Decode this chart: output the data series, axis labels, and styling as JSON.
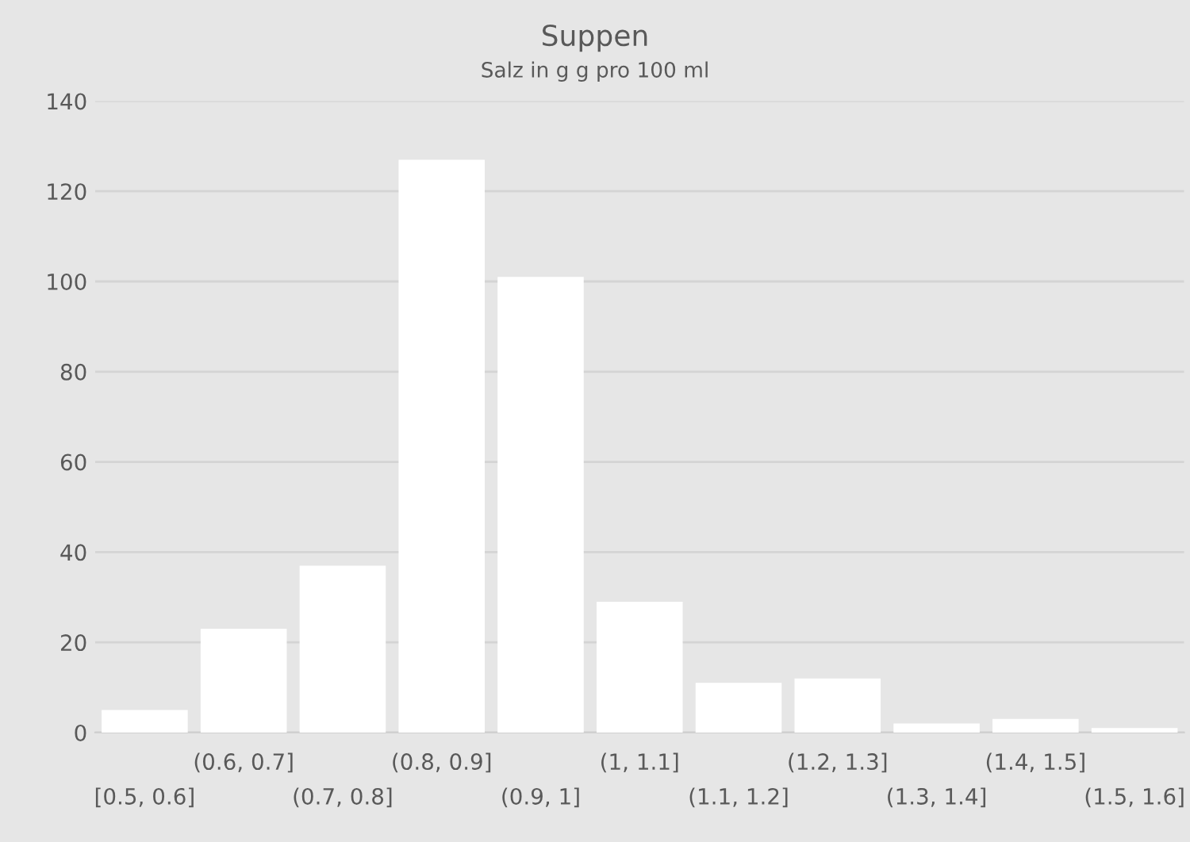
{
  "chart_data": {
    "type": "bar",
    "title": "Suppen",
    "subtitle": "Salz in g g pro 100 ml",
    "categories": [
      "[0.5, 0.6]",
      "(0.6, 0.7]",
      "(0.7, 0.8]",
      "(0.8, 0.9]",
      "(0.9, 1]",
      "(1, 1.1]",
      "(1.1, 1.2]",
      "(1.2, 1.3]",
      "(1.3, 1.4]",
      "(1.4, 1.5]",
      "(1.5, 1.6]"
    ],
    "values": [
      5,
      23,
      37,
      127,
      101,
      29,
      11,
      12,
      2,
      3,
      1
    ],
    "color": "#ffffff",
    "ylim": [
      0,
      140
    ],
    "yticks": [
      0,
      20,
      40,
      60,
      80,
      100,
      120,
      140
    ],
    "grid": "y",
    "legend": false
  }
}
